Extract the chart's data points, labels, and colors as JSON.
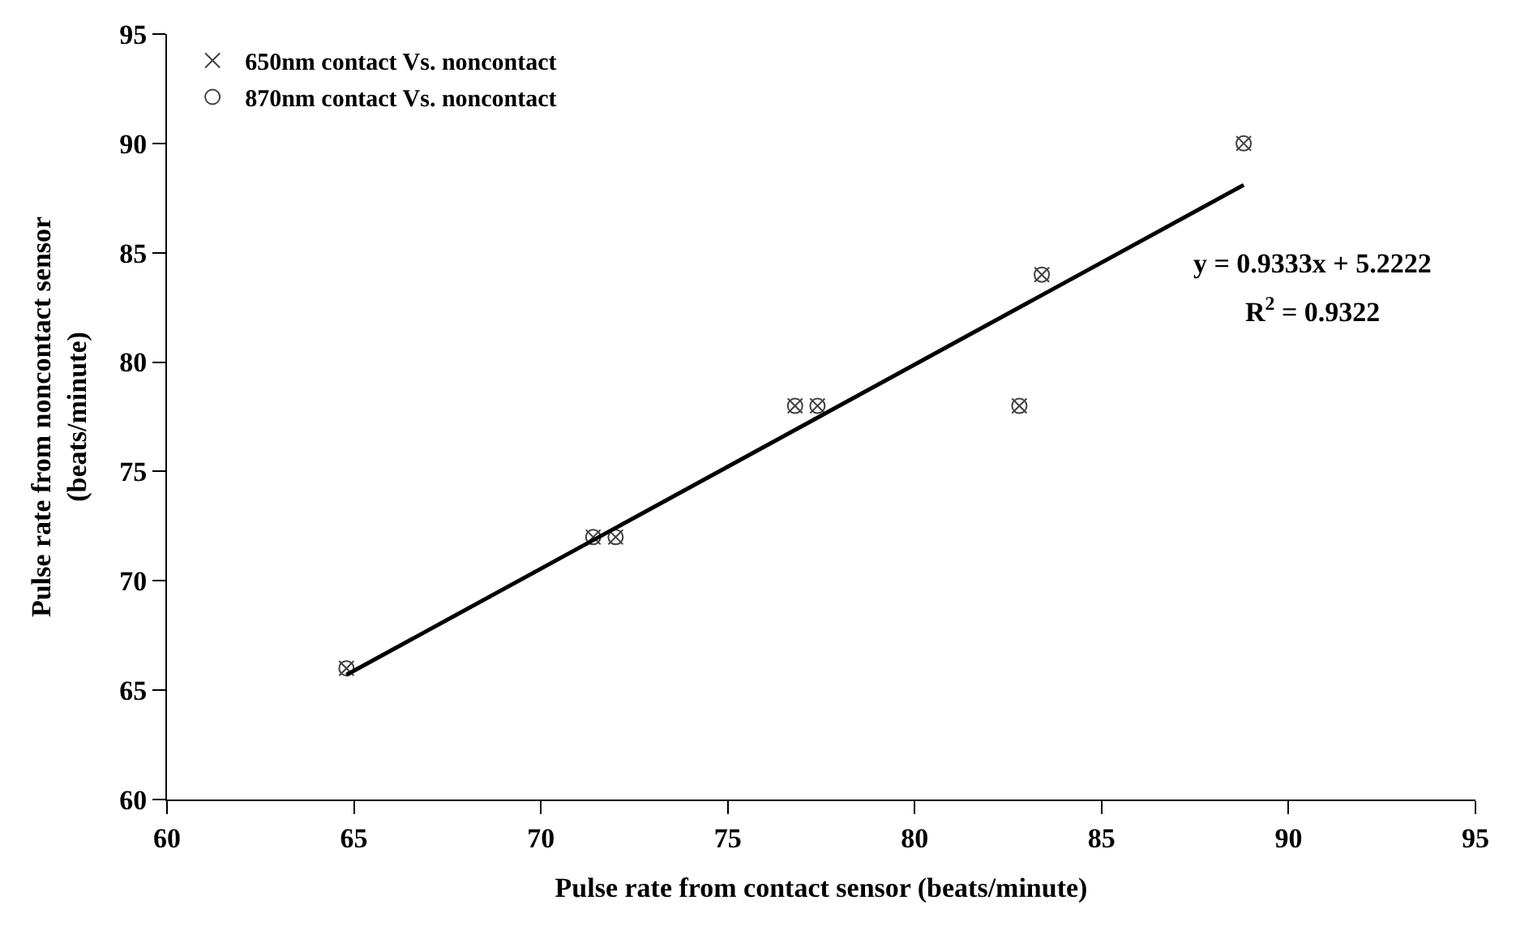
{
  "chart_data": {
    "type": "scatter",
    "xlabel": "Pulse rate from contact sensor (beats/minute)",
    "ylabel": "Pulse rate from noncontact sensor\n(beats/minute)",
    "xlim": [
      60,
      95
    ],
    "xticks": [
      60,
      65,
      70,
      75,
      80,
      85,
      90,
      95
    ],
    "ylim": [
      60,
      95
    ],
    "yticks": [
      60,
      65,
      70,
      75,
      80,
      85,
      90,
      95
    ],
    "legend": "top left",
    "series": [
      {
        "name": "650nm contact Vs. noncontact",
        "color": "#404040",
        "marker": "cross",
        "x": [
          64.8,
          71.4,
          72.0,
          76.8,
          77.4,
          82.8,
          83.4,
          88.8
        ],
        "values": [
          66,
          72,
          72,
          78,
          78,
          78,
          84,
          90
        ]
      },
      {
        "name": "870nm contact Vs. noncontact",
        "color": "#404040",
        "marker": "circle",
        "x": [
          64.8,
          71.4,
          72.0,
          76.8,
          77.4,
          82.8,
          83.4,
          88.8
        ],
        "values": [
          66,
          72,
          72,
          78,
          78,
          78,
          84,
          90
        ]
      },
      {
        "type": "line",
        "color": "#000000",
        "marker": "none",
        "line_style": "solid",
        "x": [
          64.8,
          88.8
        ],
        "values": [
          65.7,
          88.1
        ]
      }
    ],
    "annotations": [
      "y = 0.9333x + 5.2222",
      "R$^{2}$ = 0.9322"
    ]
  }
}
